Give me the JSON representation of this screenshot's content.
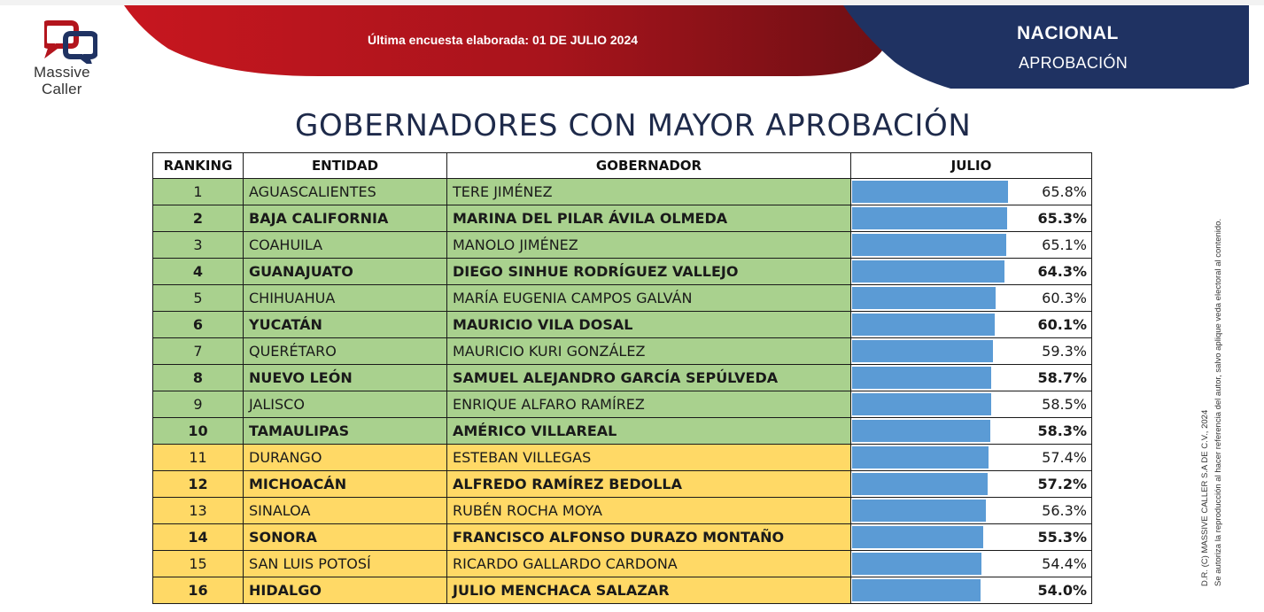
{
  "header": {
    "survey_date": "Última encuesta elaborada: 01 DE JULIO 2024",
    "scope": "NACIONAL",
    "metric": "APROBACIÓN"
  },
  "logo": {
    "word1": "Massive",
    "word2": "Caller",
    "icon": "speech-bubbles-logo-icon"
  },
  "colors": {
    "banner_red": "#a6131c",
    "banner_navy": "#1f3262",
    "row_green": "#a9d18e",
    "row_yellow": "#ffd966",
    "bar_blue": "#5b9bd5",
    "title_navy": "#1e2a4a"
  },
  "chart_data": {
    "type": "table",
    "title": "GOBERNADORES CON MAYOR APROBACIÓN",
    "columns": [
      "RANKING",
      "ENTIDAD",
      "GOBERNADOR",
      "JULIO"
    ],
    "value_unit": "%",
    "bar_max": 100,
    "rows": [
      {
        "rank": "1",
        "entidad": "AGUASCALIENTES",
        "gobernador": "TERE JIMÉNEZ",
        "julio": 65.8,
        "label": "65.8%",
        "group": "green",
        "bold": false
      },
      {
        "rank": "2",
        "entidad": "BAJA CALIFORNIA",
        "gobernador": "MARINA DEL PILAR ÁVILA OLMEDA",
        "julio": 65.3,
        "label": "65.3%",
        "group": "green",
        "bold": true
      },
      {
        "rank": "3",
        "entidad": "COAHUILA",
        "gobernador": "MANOLO JIMÉNEZ",
        "julio": 65.1,
        "label": "65.1%",
        "group": "green",
        "bold": false
      },
      {
        "rank": "4",
        "entidad": "GUANAJUATO",
        "gobernador": "DIEGO SINHUE RODRÍGUEZ VALLEJO",
        "julio": 64.3,
        "label": "64.3%",
        "group": "green",
        "bold": true
      },
      {
        "rank": "5",
        "entidad": "CHIHUAHUA",
        "gobernador": "MARÍA EUGENIA CAMPOS GALVÁN",
        "julio": 60.3,
        "label": "60.3%",
        "group": "green",
        "bold": false
      },
      {
        "rank": "6",
        "entidad": "YUCATÁN",
        "gobernador": "MAURICIO VILA DOSAL",
        "julio": 60.1,
        "label": "60.1%",
        "group": "green",
        "bold": true
      },
      {
        "rank": "7",
        "entidad": "QUERÉTARO",
        "gobernador": "MAURICIO KURI GONZÁLEZ",
        "julio": 59.3,
        "label": "59.3%",
        "group": "green",
        "bold": false
      },
      {
        "rank": "8",
        "entidad": "NUEVO LEÓN",
        "gobernador": "SAMUEL ALEJANDRO GARCÍA SEPÚLVEDA",
        "julio": 58.7,
        "label": "58.7%",
        "group": "green",
        "bold": true
      },
      {
        "rank": "9",
        "entidad": "JALISCO",
        "gobernador": "ENRIQUE ALFARO RAMÍREZ",
        "julio": 58.5,
        "label": "58.5%",
        "group": "green",
        "bold": false
      },
      {
        "rank": "10",
        "entidad": "TAMAULIPAS",
        "gobernador": "AMÉRICO VILLAREAL",
        "julio": 58.3,
        "label": "58.3%",
        "group": "green",
        "bold": true
      },
      {
        "rank": "11",
        "entidad": "DURANGO",
        "gobernador": "ESTEBAN VILLEGAS",
        "julio": 57.4,
        "label": "57.4%",
        "group": "yellow",
        "bold": false
      },
      {
        "rank": "12",
        "entidad": "MICHOACÁN",
        "gobernador": "ALFREDO RAMÍREZ BEDOLLA",
        "julio": 57.2,
        "label": "57.2%",
        "group": "yellow",
        "bold": true
      },
      {
        "rank": "13",
        "entidad": "SINALOA",
        "gobernador": "RUBÉN ROCHA MOYA",
        "julio": 56.3,
        "label": "56.3%",
        "group": "yellow",
        "bold": false
      },
      {
        "rank": "14",
        "entidad": "SONORA",
        "gobernador": "FRANCISCO ALFONSO DURAZO MONTAÑO",
        "julio": 55.3,
        "label": "55.3%",
        "group": "yellow",
        "bold": true
      },
      {
        "rank": "15",
        "entidad": "SAN LUIS POTOSÍ",
        "gobernador": "RICARDO GALLARDO CARDONA",
        "julio": 54.4,
        "label": "54.4%",
        "group": "yellow",
        "bold": false
      },
      {
        "rank": "16",
        "entidad": "HIDALGO",
        "gobernador": "JULIO MENCHACA SALAZAR",
        "julio": 54.0,
        "label": "54.0%",
        "group": "yellow",
        "bold": true
      }
    ]
  },
  "copyright": {
    "line1": "D.R. (C) MASSIVE CALLER S.A DE C.V., 2024",
    "line2": "Se autoriza la reproducción al hacer referencia del autor, salvo aplique veda electoral al contenido."
  }
}
